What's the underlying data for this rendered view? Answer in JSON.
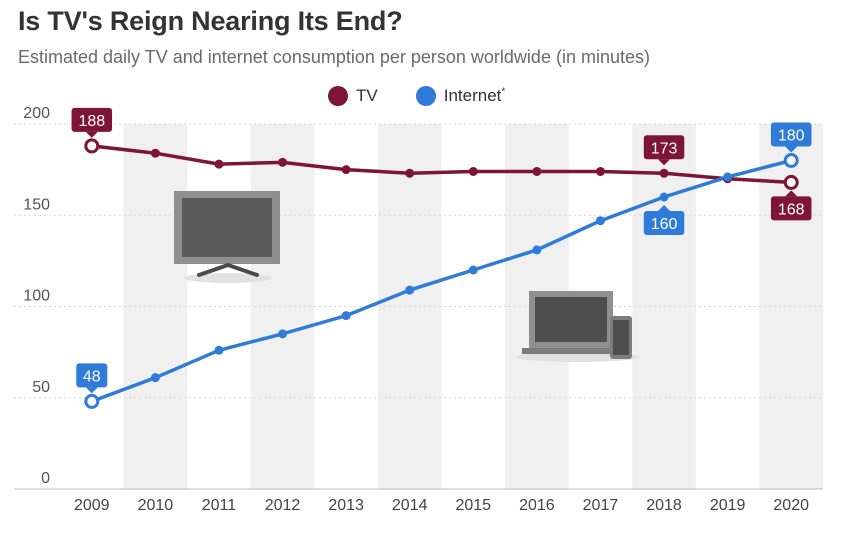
{
  "header": {
    "title": "Is TV's Reign Nearing Its End?",
    "subtitle": "Estimated daily TV and internet consumption per person worldwide (in minutes)"
  },
  "legend": {
    "items": [
      {
        "label": "TV",
        "color": "#7e1437"
      },
      {
        "label": "Internet",
        "sup": "*",
        "color": "#2f7bd9"
      }
    ]
  },
  "chart_data": {
    "type": "line",
    "title": "Is TV's Reign Nearing Its End?",
    "subtitle": "Estimated daily TV and internet consumption per person worldwide (in minutes)",
    "xlabel": "",
    "ylabel": "",
    "categories": [
      "2009",
      "2010",
      "2011",
      "2012",
      "2013",
      "2014",
      "2015",
      "2016",
      "2017",
      "2018",
      "2019",
      "2020"
    ],
    "ylim": [
      0,
      200
    ],
    "yticks": [
      0,
      50,
      100,
      150,
      200
    ],
    "grid": true,
    "legend_position": "top-center",
    "series": [
      {
        "name": "TV",
        "color": "#7e1437",
        "values": [
          188,
          184,
          178,
          179,
          175,
          173,
          174,
          174,
          174,
          173,
          170,
          168
        ]
      },
      {
        "name": "Internet*",
        "color": "#2f7bd9",
        "values": [
          48,
          61,
          76,
          85,
          95,
          109,
          120,
          131,
          147,
          160,
          171,
          180
        ]
      }
    ],
    "data_labels": [
      {
        "series": "TV",
        "category": "2009",
        "text": "188",
        "placement": "above"
      },
      {
        "series": "TV",
        "category": "2018",
        "text": "173",
        "placement": "above"
      },
      {
        "series": "TV",
        "category": "2020",
        "text": "168",
        "placement": "below"
      },
      {
        "series": "Internet*",
        "category": "2009",
        "text": "48",
        "placement": "above"
      },
      {
        "series": "Internet*",
        "category": "2018",
        "text": "160",
        "placement": "below"
      },
      {
        "series": "Internet*",
        "category": "2020",
        "text": "180",
        "placement": "above"
      }
    ],
    "illustrations": [
      "tv-icon",
      "laptop-phone-icon"
    ]
  }
}
